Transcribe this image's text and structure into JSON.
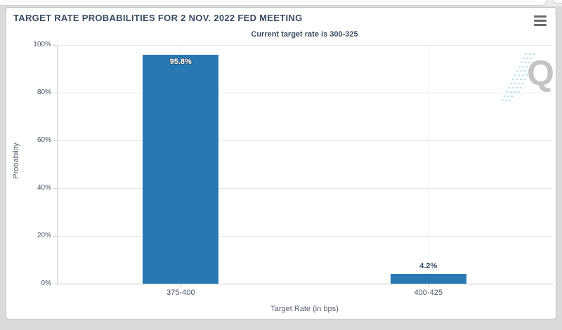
{
  "header": {
    "menu_icon": "hamburger-icon"
  },
  "chart_data": {
    "type": "bar",
    "title": "TARGET RATE PROBABILITIES FOR 2 NOV. 2022 FED MEETING",
    "subtitle": "Current target rate is 300-325",
    "categories": [
      "375-400",
      "400-425"
    ],
    "values": [
      95.8,
      4.2
    ],
    "data_labels": [
      "95.8%",
      "4.2%"
    ],
    "xlabel": "Target Rate (in bps)",
    "ylabel": "Probability",
    "ylim": [
      0,
      100
    ],
    "yticks": [
      0,
      20,
      40,
      60,
      80,
      100
    ],
    "ytick_labels": [
      "0%",
      "20%",
      "40%",
      "60%",
      "80%",
      "100%"
    ],
    "grid": true,
    "legend": "none",
    "bar_color": "#2878b4"
  },
  "watermark": {
    "letter": "Q"
  },
  "colors": {
    "bar": "#2878b4",
    "title_text": "#3a4a63",
    "axis_text": "#4a5568",
    "grid": "#e6e6e6",
    "axis_line": "#c9c9c9",
    "watermark_gray": "#c3c3c3",
    "watermark_blue": "#a9d7ec"
  }
}
